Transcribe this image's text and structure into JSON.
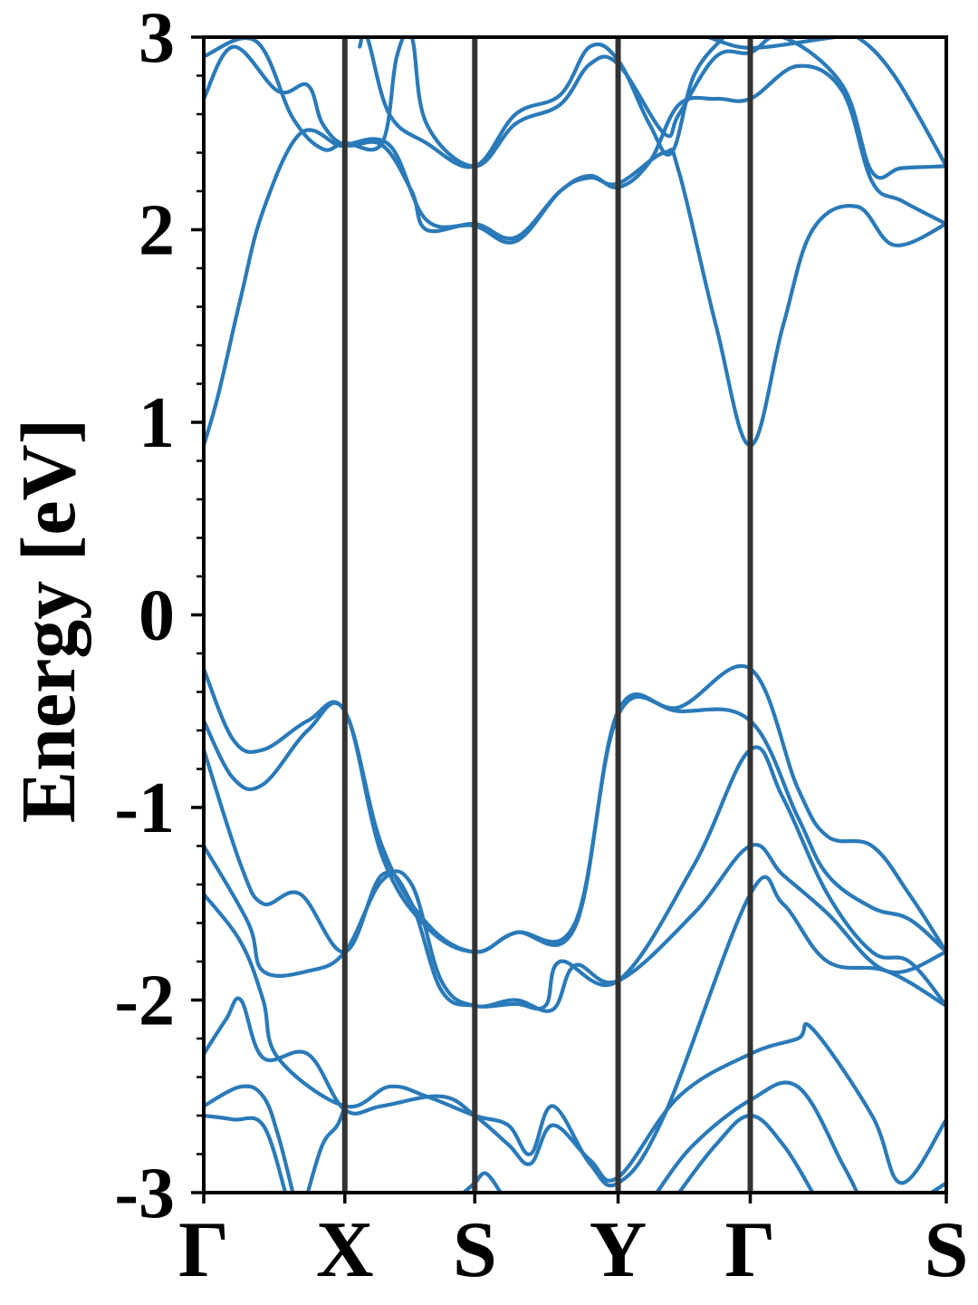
{
  "chart_data": {
    "type": "line",
    "title": "",
    "ylabel": "Energy [eV]",
    "xlabel": "",
    "ylim": [
      -3,
      3
    ],
    "yticks": [
      "3",
      "2",
      "1",
      "0",
      "-1",
      "-2",
      "-3"
    ],
    "ytick_values": [
      3,
      2,
      1,
      0,
      -1,
      -2,
      -3
    ],
    "y_minor_step": 0.2,
    "kpoint_labels": [
      "Γ",
      "X",
      "S",
      "Y",
      "Γ",
      "S"
    ],
    "kpoint_positions": [
      0,
      0.19,
      0.365,
      0.558,
      0.736,
      1.0
    ],
    "path_range": [
      0,
      1
    ],
    "grid": false,
    "colors": {
      "band": "#2a7ab9",
      "divider": "#333333",
      "axis": "#000000"
    },
    "series": [
      {
        "values": [
          [
            0,
            0.88
          ],
          [
            0.02,
            1.15
          ],
          [
            0.05,
            1.65
          ],
          [
            0.08,
            2.1
          ],
          [
            0.13,
            2.5
          ],
          [
            0.18,
            2.44
          ],
          [
            0.19,
            2.44
          ],
          [
            0.25,
            2.44
          ],
          [
            0.3,
            2.05
          ],
          [
            0.365,
            2.02
          ],
          [
            0.42,
            1.94
          ],
          [
            0.48,
            2.2
          ],
          [
            0.52,
            2.27
          ],
          [
            0.558,
            2.24
          ],
          [
            0.62,
            2.4
          ],
          [
            0.64,
            2.3
          ],
          [
            0.69,
            1.5
          ],
          [
            0.736,
            0.88
          ],
          [
            0.78,
            1.5
          ],
          [
            0.82,
            2.0
          ],
          [
            0.88,
            2.12
          ],
          [
            0.93,
            1.92
          ],
          [
            1.0,
            2.03
          ]
        ]
      },
      {
        "values": [
          [
            0,
            2.68
          ],
          [
            0.04,
            2.95
          ],
          [
            0.1,
            2.72
          ],
          [
            0.14,
            2.75
          ],
          [
            0.16,
            2.55
          ],
          [
            0.19,
            2.44
          ],
          [
            0.24,
            2.44
          ],
          [
            0.28,
            2.2
          ],
          [
            0.3,
            2.0
          ],
          [
            0.365,
            2.03
          ],
          [
            0.42,
            1.96
          ],
          [
            0.48,
            2.2
          ],
          [
            0.52,
            2.28
          ],
          [
            0.558,
            2.22
          ],
          [
            0.6,
            2.35
          ],
          [
            0.64,
            2.65
          ],
          [
            0.69,
            2.68
          ],
          [
            0.736,
            2.68
          ],
          [
            0.8,
            2.85
          ],
          [
            0.86,
            2.72
          ],
          [
            0.9,
            2.25
          ],
          [
            0.94,
            2.15
          ],
          [
            1.0,
            2.03
          ]
        ]
      },
      {
        "values": [
          [
            0,
            2.9
          ],
          [
            0.07,
            2.98
          ],
          [
            0.12,
            2.58
          ],
          [
            0.16,
            2.42
          ],
          [
            0.19,
            2.45
          ],
          [
            0.24,
            2.45
          ],
          [
            0.26,
            2.9
          ],
          [
            0.28,
            3.0
          ],
          [
            0.3,
            2.55
          ],
          [
            0.365,
            2.33
          ],
          [
            0.42,
            2.55
          ],
          [
            0.48,
            2.65
          ],
          [
            0.52,
            2.86
          ],
          [
            0.558,
            2.86
          ],
          [
            0.62,
            2.5
          ],
          [
            0.64,
            2.6
          ],
          [
            0.69,
            2.9
          ],
          [
            0.736,
            2.92
          ],
          [
            0.78,
            3.0
          ],
          [
            0.86,
            2.75
          ],
          [
            0.9,
            2.3
          ],
          [
            0.94,
            2.32
          ],
          [
            1.0,
            2.33
          ]
        ]
      },
      {
        "values": [
          [
            0.21,
            2.95
          ],
          [
            0.22,
            3.0
          ],
          [
            0.25,
            2.6
          ],
          [
            0.3,
            2.45
          ],
          [
            0.365,
            2.33
          ],
          [
            0.42,
            2.6
          ],
          [
            0.48,
            2.7
          ],
          [
            0.52,
            2.95
          ],
          [
            0.558,
            2.88
          ],
          [
            0.6,
            2.55
          ],
          [
            0.63,
            2.4
          ],
          [
            0.66,
            2.8
          ],
          [
            0.7,
            3.0
          ]
        ]
      },
      {
        "values": [
          [
            0.68,
            3.0
          ],
          [
            0.72,
            2.95
          ],
          [
            0.76,
            2.95
          ],
          [
            0.85,
            3.0
          ],
          [
            0.88,
            3.0
          ],
          [
            0.93,
            2.8
          ],
          [
            1.0,
            2.33
          ]
        ]
      },
      {
        "values": [
          [
            0,
            -0.28
          ],
          [
            0.04,
            -0.65
          ],
          [
            0.08,
            -0.7
          ],
          [
            0.14,
            -0.55
          ],
          [
            0.19,
            -0.5
          ],
          [
            0.24,
            -1.2
          ],
          [
            0.3,
            -1.6
          ],
          [
            0.365,
            -1.75
          ],
          [
            0.42,
            -1.65
          ],
          [
            0.5,
            -1.62
          ],
          [
            0.558,
            -0.5
          ],
          [
            0.64,
            -0.48
          ],
          [
            0.736,
            -0.28
          ],
          [
            0.8,
            -0.9
          ],
          [
            0.84,
            -1.15
          ],
          [
            0.9,
            -1.2
          ],
          [
            0.95,
            -1.45
          ],
          [
            1.0,
            -1.75
          ]
        ]
      },
      {
        "values": [
          [
            0,
            -0.55
          ],
          [
            0.04,
            -0.85
          ],
          [
            0.08,
            -0.88
          ],
          [
            0.14,
            -0.6
          ],
          [
            0.19,
            -0.5
          ],
          [
            0.24,
            -1.25
          ],
          [
            0.3,
            -1.62
          ],
          [
            0.365,
            -1.75
          ],
          [
            0.42,
            -1.65
          ],
          [
            0.5,
            -1.6
          ],
          [
            0.558,
            -0.52
          ],
          [
            0.64,
            -0.5
          ],
          [
            0.736,
            -0.55
          ],
          [
            0.8,
            -1.05
          ],
          [
            0.84,
            -1.35
          ],
          [
            0.9,
            -1.52
          ],
          [
            0.95,
            -1.58
          ],
          [
            1.0,
            -1.75
          ]
        ]
      },
      {
        "values": [
          [
            0,
            -0.7
          ],
          [
            0.05,
            -1.3
          ],
          [
            0.08,
            -1.5
          ],
          [
            0.13,
            -1.45
          ],
          [
            0.19,
            -1.75
          ],
          [
            0.24,
            -1.35
          ],
          [
            0.28,
            -1.5
          ],
          [
            0.32,
            -1.95
          ],
          [
            0.365,
            -2.03
          ],
          [
            0.42,
            -2.02
          ],
          [
            0.46,
            -2.03
          ],
          [
            0.48,
            -1.8
          ],
          [
            0.558,
            -1.9
          ],
          [
            0.66,
            -1.3
          ],
          [
            0.736,
            -0.7
          ],
          [
            0.78,
            -0.95
          ],
          [
            0.84,
            -1.45
          ],
          [
            0.9,
            -1.75
          ],
          [
            0.95,
            -1.8
          ],
          [
            1.0,
            -2.03
          ]
        ]
      },
      {
        "values": [
          [
            0,
            -1.2
          ],
          [
            0.06,
            -1.6
          ],
          [
            0.08,
            -1.85
          ],
          [
            0.14,
            -1.85
          ],
          [
            0.19,
            -1.75
          ],
          [
            0.24,
            -1.38
          ],
          [
            0.28,
            -1.4
          ],
          [
            0.32,
            -1.9
          ],
          [
            0.365,
            -2.03
          ],
          [
            0.42,
            -2.0
          ],
          [
            0.47,
            -2.05
          ],
          [
            0.5,
            -1.82
          ],
          [
            0.558,
            -1.9
          ],
          [
            0.66,
            -1.55
          ],
          [
            0.736,
            -1.2
          ],
          [
            0.78,
            -1.35
          ],
          [
            0.84,
            -1.55
          ],
          [
            0.92,
            -1.85
          ],
          [
            1.0,
            -1.75
          ]
        ]
      },
      {
        "values": [
          [
            0,
            -1.45
          ],
          [
            0.05,
            -1.7
          ],
          [
            0.08,
            -2.0
          ],
          [
            0.1,
            -2.3
          ],
          [
            0.19,
            -2.55
          ],
          [
            0.25,
            -2.45
          ],
          [
            0.3,
            -2.5
          ],
          [
            0.365,
            -2.6
          ],
          [
            0.41,
            -2.65
          ],
          [
            0.44,
            -2.8
          ],
          [
            0.47,
            -2.55
          ],
          [
            0.52,
            -2.85
          ],
          [
            0.558,
            -2.95
          ],
          [
            0.62,
            -2.6
          ],
          [
            0.736,
            -1.45
          ],
          [
            0.78,
            -1.5
          ],
          [
            0.84,
            -1.8
          ],
          [
            0.92,
            -1.85
          ],
          [
            1.0,
            -2.03
          ]
        ]
      },
      {
        "values": [
          [
            0,
            -2.28
          ],
          [
            0.03,
            -2.1
          ],
          [
            0.05,
            -2.0
          ],
          [
            0.08,
            -2.3
          ],
          [
            0.14,
            -2.28
          ],
          [
            0.19,
            -2.57
          ],
          [
            0.24,
            -2.55
          ],
          [
            0.32,
            -2.5
          ],
          [
            0.365,
            -2.6
          ],
          [
            0.41,
            -2.75
          ],
          [
            0.44,
            -2.85
          ],
          [
            0.47,
            -2.65
          ],
          [
            0.52,
            -2.83
          ],
          [
            0.558,
            -2.92
          ],
          [
            0.64,
            -2.5
          ],
          [
            0.736,
            -2.28
          ],
          [
            0.8,
            -2.2
          ],
          [
            0.82,
            -2.15
          ],
          [
            0.9,
            -2.6
          ],
          [
            0.94,
            -2.95
          ],
          [
            1.0,
            -2.62
          ]
        ]
      },
      {
        "values": [
          [
            0,
            -2.55
          ],
          [
            0.05,
            -2.45
          ],
          [
            0.08,
            -2.5
          ],
          [
            0.1,
            -2.7
          ],
          [
            0.12,
            -3.0
          ]
        ]
      },
      {
        "values": [
          [
            0,
            -2.6
          ],
          [
            0.04,
            -2.62
          ],
          [
            0.08,
            -2.65
          ],
          [
            0.11,
            -3.0
          ]
        ]
      },
      {
        "values": [
          [
            0.14,
            -3.0
          ],
          [
            0.16,
            -2.75
          ],
          [
            0.18,
            -2.65
          ],
          [
            0.19,
            -2.55
          ]
        ]
      },
      {
        "values": [
          [
            0.35,
            -3.0
          ],
          [
            0.365,
            -2.95
          ],
          [
            0.38,
            -2.9
          ],
          [
            0.4,
            -3.0
          ]
        ]
      },
      {
        "values": [
          [
            0.61,
            -3.0
          ],
          [
            0.66,
            -2.75
          ],
          [
            0.736,
            -2.52
          ],
          [
            0.8,
            -2.45
          ],
          [
            0.86,
            -2.85
          ],
          [
            0.88,
            -3.0
          ]
        ]
      },
      {
        "values": [
          [
            0.64,
            -3.0
          ],
          [
            0.69,
            -2.75
          ],
          [
            0.736,
            -2.6
          ],
          [
            0.78,
            -2.75
          ],
          [
            0.82,
            -3.0
          ]
        ]
      },
      {
        "values": [
          [
            0.98,
            -3.0
          ],
          [
            1.0,
            -2.95
          ]
        ]
      }
    ]
  }
}
